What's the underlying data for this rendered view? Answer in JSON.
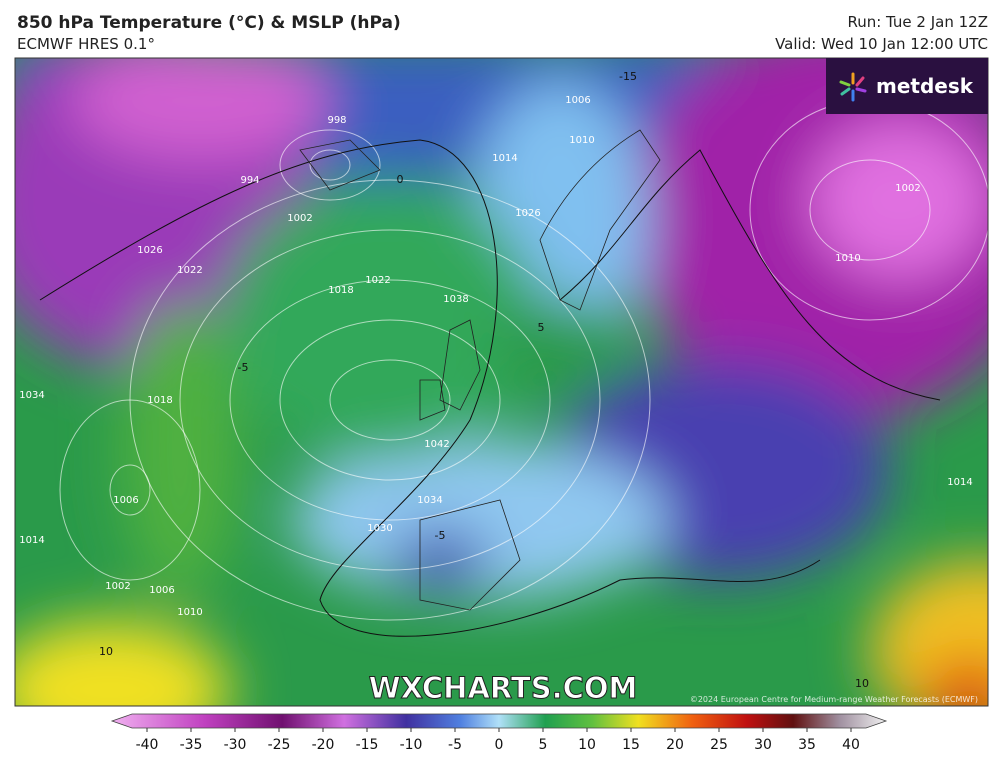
{
  "header": {
    "title": "850 hPa Temperature (°C) & MSLP (hPa)",
    "subtitle": "ECMWF HRES 0.1°",
    "run": "Run: Tue 2 Jan 12Z",
    "valid": "Valid: Wed 10 Jan 12:00 UTC"
  },
  "logo": "metdesk",
  "watermark": "WXCHARTS.COM",
  "copyright": "©2024 European Centre for Medium-range Weather Forecasts (ECMWF)",
  "map_labels": [
    "1042",
    "1038",
    "1034",
    "1030",
    "1026",
    "1022",
    "1018",
    "1014",
    "1010",
    "1006",
    "1002",
    "998",
    "994",
    "1002",
    "1010",
    "1014",
    "1018",
    "1022",
    "1026",
    "1034",
    "1006",
    "1014",
    "1002",
    "1006",
    "1010",
    "10",
    "10",
    "-5",
    "-5",
    "0",
    "5",
    "-15"
  ],
  "colorbar": {
    "range": [
      -40,
      40
    ],
    "ticks": [
      -40,
      -35,
      -30,
      -25,
      -20,
      -15,
      -10,
      -5,
      0,
      5,
      10,
      15,
      20,
      25,
      30,
      35,
      40
    ]
  }
}
